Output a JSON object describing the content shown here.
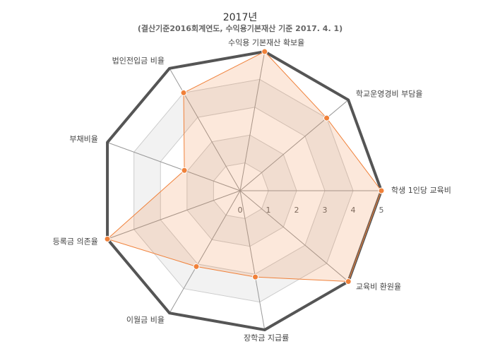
{
  "chart_data": {
    "type": "radar",
    "title": "2017년",
    "subtitle": "(결산기준2016회계연도, 수익용기본재산 기준 2017. 4. 1)",
    "categories": [
      "학생 1인당 교육비",
      "교육비 환원율",
      "장학금 지급률",
      "이월금 비율",
      "등록금 의존율",
      "부채비율",
      "법인전입금 비율",
      "수익용 기본재산 확보율",
      "학교운영경비 부담율"
    ],
    "series": [
      {
        "color": "#555555",
        "values": [
          5,
          5,
          5,
          5,
          5,
          5,
          5,
          5,
          5
        ]
      },
      {
        "color": "#f0813a",
        "values": [
          5,
          5,
          3.1,
          3.1,
          5,
          2.1,
          4,
          5,
          4
        ]
      }
    ],
    "rlim": [
      0,
      5
    ],
    "rticks": [
      0,
      1,
      2,
      3,
      4,
      5
    ]
  }
}
